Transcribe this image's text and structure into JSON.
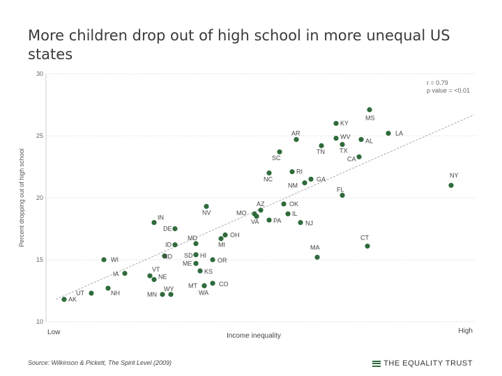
{
  "header": {
    "title": "More children drop out of high school in more unequal US states"
  },
  "stats": {
    "r": "r = 0.79",
    "p": "p value = <0.01"
  },
  "footer": {
    "source": "Source: Wilkinson & Pickett, The Spirit Level (2009)",
    "brand": "THE EQUALITY TRUST"
  },
  "colors": {
    "point": "#2f6b3b",
    "trend": "#aaaaaa",
    "grid": "#d0d0d0"
  },
  "chart_data": {
    "type": "scatter",
    "ylabel": "Percent dropping out of high school",
    "xlabel": "Income inequality",
    "x_low_label": "Low",
    "x_high_label": "High",
    "ylim": [
      10,
      30
    ],
    "yticks": [
      10,
      15,
      20,
      25,
      30
    ],
    "xlim": [
      0,
      100
    ],
    "trend": {
      "x": [
        0,
        100
      ],
      "y": [
        11.8,
        26.7
      ]
    },
    "points": [
      {
        "label": "AK",
        "x": 2.0,
        "y": 11.8
      },
      {
        "label": "UT",
        "x": 8.5,
        "y": 12.3
      },
      {
        "label": "NH",
        "x": 12.5,
        "y": 12.7
      },
      {
        "label": "WI",
        "x": 11.5,
        "y": 15.0
      },
      {
        "label": "IA",
        "x": 16.5,
        "y": 13.9
      },
      {
        "label": "VT",
        "x": 22.5,
        "y": 13.7
      },
      {
        "label": "NE",
        "x": 23.5,
        "y": 13.4
      },
      {
        "label": "MN",
        "x": 25.5,
        "y": 12.2
      },
      {
        "label": "WY",
        "x": 27.5,
        "y": 12.2
      },
      {
        "label": "IN",
        "x": 23.5,
        "y": 18.0
      },
      {
        "label": "DE",
        "x": 28.5,
        "y": 17.5
      },
      {
        "label": "ID",
        "x": 28.5,
        "y": 16.2
      },
      {
        "label": "ND",
        "x": 26.0,
        "y": 15.3
      },
      {
        "label": "MD",
        "x": 33.5,
        "y": 16.3
      },
      {
        "label": "SD",
        "x": 33.5,
        "y": 15.4
      },
      {
        "label": "HI",
        "x": 33.5,
        "y": 15.4
      },
      {
        "label": "ME",
        "x": 33.5,
        "y": 14.7
      },
      {
        "label": "KS",
        "x": 34.5,
        "y": 14.1
      },
      {
        "label": "OR",
        "x": 37.5,
        "y": 15.0
      },
      {
        "label": "MT",
        "x": 35.5,
        "y": 12.9
      },
      {
        "label": "CO",
        "x": 37.5,
        "y": 13.1
      },
      {
        "label": "WA",
        "x": 35.5,
        "y": 12.9
      },
      {
        "label": "NV",
        "x": 36.0,
        "y": 19.3
      },
      {
        "label": "MI",
        "x": 39.5,
        "y": 16.7
      },
      {
        "label": "OH",
        "x": 40.5,
        "y": 17.0
      },
      {
        "label": "MO",
        "x": 47.5,
        "y": 18.7
      },
      {
        "label": "AZ",
        "x": 49.0,
        "y": 19.0
      },
      {
        "label": "VA",
        "x": 48.0,
        "y": 18.5
      },
      {
        "label": "PA",
        "x": 51.0,
        "y": 18.2
      },
      {
        "label": "OK",
        "x": 54.5,
        "y": 19.5
      },
      {
        "label": "IL",
        "x": 55.5,
        "y": 18.7
      },
      {
        "label": "NJ",
        "x": 58.5,
        "y": 18.0
      },
      {
        "label": "NC",
        "x": 51.0,
        "y": 22.0
      },
      {
        "label": "SC",
        "x": 53.5,
        "y": 23.7
      },
      {
        "label": "AR",
        "x": 57.5,
        "y": 24.7
      },
      {
        "label": "RI",
        "x": 56.5,
        "y": 22.1
      },
      {
        "label": "GA",
        "x": 61.0,
        "y": 21.5
      },
      {
        "label": "NM",
        "x": 59.5,
        "y": 21.2
      },
      {
        "label": "TN",
        "x": 63.5,
        "y": 24.2
      },
      {
        "label": "KY",
        "x": 67.0,
        "y": 26.0
      },
      {
        "label": "WV",
        "x": 67.0,
        "y": 24.8
      },
      {
        "label": "TX",
        "x": 68.5,
        "y": 24.3
      },
      {
        "label": "AL",
        "x": 73.0,
        "y": 24.7
      },
      {
        "label": "CA",
        "x": 72.5,
        "y": 23.3
      },
      {
        "label": "MS",
        "x": 75.0,
        "y": 27.1
      },
      {
        "label": "LA",
        "x": 79.5,
        "y": 25.2
      },
      {
        "label": "FL",
        "x": 68.5,
        "y": 20.2
      },
      {
        "label": "MA",
        "x": 62.5,
        "y": 15.2
      },
      {
        "label": "CT",
        "x": 74.5,
        "y": 16.1
      },
      {
        "label": "NY",
        "x": 94.5,
        "y": 21.0
      }
    ]
  }
}
